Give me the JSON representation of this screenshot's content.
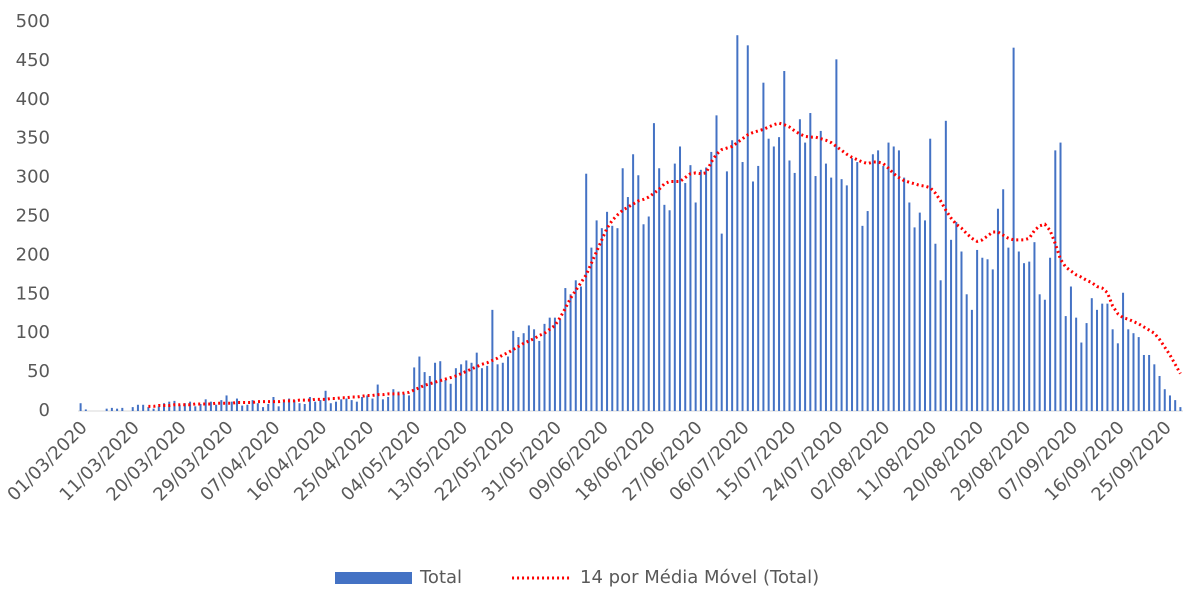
{
  "chart_data": {
    "type": "bar-line",
    "categories": [
      "01/03/2020",
      null,
      null,
      null,
      null,
      null,
      null,
      null,
      null,
      null,
      "11/03/2020",
      null,
      null,
      null,
      null,
      null,
      null,
      null,
      null,
      "20/03/2020",
      null,
      null,
      null,
      null,
      null,
      null,
      null,
      null,
      "29/03/2020",
      null,
      null,
      null,
      null,
      null,
      null,
      null,
      null,
      "07/04/2020",
      null,
      null,
      null,
      null,
      null,
      null,
      null,
      null,
      "16/04/2020",
      null,
      null,
      null,
      null,
      null,
      null,
      null,
      null,
      "25/04/2020",
      null,
      null,
      null,
      null,
      null,
      null,
      null,
      null,
      "04/05/2020",
      null,
      null,
      null,
      null,
      null,
      null,
      null,
      null,
      "13/05/2020",
      null,
      null,
      null,
      null,
      null,
      null,
      null,
      null,
      "22/05/2020",
      null,
      null,
      null,
      null,
      null,
      null,
      null,
      null,
      "31/05/2020",
      null,
      null,
      null,
      null,
      null,
      null,
      null,
      null,
      "09/06/2020",
      null,
      null,
      null,
      null,
      null,
      null,
      null,
      null,
      "18/06/2020",
      null,
      null,
      null,
      null,
      null,
      null,
      null,
      null,
      "27/06/2020",
      null,
      null,
      null,
      null,
      null,
      null,
      null,
      null,
      "06/07/2020",
      null,
      null,
      null,
      null,
      null,
      null,
      null,
      null,
      "15/07/2020",
      null,
      null,
      null,
      null,
      null,
      null,
      null,
      null,
      "24/07/2020",
      null,
      null,
      null,
      null,
      null,
      null,
      null,
      null,
      "02/08/2020",
      null,
      null,
      null,
      null,
      null,
      null,
      null,
      null,
      "11/08/2020",
      null,
      null,
      null,
      null,
      null,
      null,
      null,
      null,
      "20/08/2020",
      null,
      null,
      null,
      null,
      null,
      null,
      null,
      null,
      "29/08/2020",
      null,
      null,
      null,
      null,
      null,
      null,
      null,
      null,
      "07/09/2020",
      null,
      null,
      null,
      null,
      null,
      null,
      null,
      null,
      "16/09/2020",
      null,
      null,
      null,
      null,
      null,
      null,
      null,
      null,
      "25/09/2020",
      null,
      null,
      null
    ],
    "series": [
      {
        "name": "Total",
        "type": "bar",
        "color": "#4472c4",
        "values": [
          10,
          2,
          0,
          0,
          0,
          3,
          4,
          3,
          4,
          0,
          5,
          8,
          8,
          5,
          3,
          6,
          10,
          12,
          13,
          8,
          10,
          12,
          6,
          9,
          15,
          12,
          8,
          14,
          20,
          12,
          16,
          7,
          8,
          14,
          10,
          5,
          9,
          18,
          6,
          12,
          16,
          14,
          10,
          9,
          18,
          12,
          14,
          26,
          10,
          12,
          15,
          16,
          14,
          12,
          18,
          20,
          16,
          34,
          15,
          18,
          28,
          25,
          22,
          20,
          56,
          70,
          50,
          45,
          62,
          64,
          40,
          35,
          55,
          60,
          65,
          62,
          75,
          55,
          58,
          130,
          60,
          62,
          70,
          103,
          95,
          100,
          110,
          105,
          90,
          112,
          120,
          120,
          118,
          158,
          150,
          168,
          160,
          305,
          210,
          245,
          235,
          256,
          238,
          235,
          312,
          275,
          330,
          303,
          240,
          250,
          370,
          312,
          265,
          258,
          318,
          340,
          293,
          316,
          268,
          310,
          313,
          333,
          380,
          228,
          308,
          348,
          483,
          320,
          470,
          295,
          315,
          422,
          350,
          340,
          352,
          437,
          322,
          306,
          375,
          345,
          383,
          302,
          360,
          318,
          300,
          452,
          298,
          290,
          325,
          320,
          238,
          257,
          330,
          335,
          315,
          345,
          340,
          335,
          300,
          268,
          236,
          255,
          245,
          350,
          215,
          168,
          373,
          220,
          243,
          205,
          150,
          130,
          207,
          197,
          195,
          182,
          260,
          285,
          210,
          467,
          205,
          190,
          192,
          217,
          150,
          143,
          197,
          335,
          345,
          122,
          160,
          120,
          88,
          113,
          145,
          130,
          138,
          138,
          105,
          87,
          152,
          105,
          100,
          95,
          72,
          72,
          60,
          45,
          28,
          20,
          14,
          5
        ]
      },
      {
        "name": "14 por Média Móvel (Total)",
        "type": "line",
        "color": "#ff0000",
        "values": [
          null,
          null,
          null,
          null,
          null,
          null,
          null,
          null,
          null,
          null,
          null,
          null,
          null,
          6,
          6,
          7,
          7,
          7,
          8,
          8,
          8,
          8,
          9,
          9,
          9,
          9,
          10,
          10,
          10,
          10,
          11,
          11,
          11,
          11,
          12,
          12,
          12,
          12,
          12,
          13,
          13,
          13,
          14,
          14,
          14,
          15,
          15,
          15,
          16,
          16,
          17,
          17,
          18,
          18,
          19,
          20,
          20,
          21,
          21,
          22,
          22,
          22,
          23,
          24,
          27,
          30,
          33,
          35,
          37,
          39,
          41,
          43,
          45,
          48,
          51,
          54,
          57,
          60,
          62,
          65,
          68,
          72,
          75,
          79,
          83,
          87,
          90,
          93,
          97,
          100,
          105,
          110,
          120,
          132,
          145,
          155,
          165,
          175,
          190,
          205,
          220,
          235,
          245,
          252,
          258,
          262,
          266,
          270,
          272,
          275,
          280,
          285,
          292,
          295,
          295,
          295,
          300,
          305,
          306,
          305,
          306,
          320,
          330,
          336,
          338,
          340,
          345,
          350,
          355,
          358,
          360,
          362,
          365,
          368,
          370,
          368,
          365,
          360,
          356,
          353,
          352,
          352,
          350,
          348,
          345,
          340,
          335,
          330,
          326,
          323,
          320,
          318,
          320,
          320,
          318,
          312,
          305,
          300,
          296,
          294,
          292,
          290,
          289,
          287,
          280,
          270,
          258,
          248,
          240,
          235,
          228,
          222,
          218,
          220,
          225,
          230,
          230,
          226,
          222,
          220,
          220,
          220,
          222,
          232,
          238,
          240,
          232,
          215,
          195,
          185,
          180,
          175,
          172,
          168,
          165,
          160,
          158,
          152,
          135,
          125,
          120,
          118,
          115,
          112,
          108,
          104,
          100,
          92,
          82,
          72,
          60,
          48
        ]
      }
    ],
    "ylim": [
      0,
      500
    ],
    "yticks": [
      0,
      50,
      100,
      150,
      200,
      250,
      300,
      350,
      400,
      450,
      500
    ],
    "grid": false,
    "legend": "bottom"
  }
}
